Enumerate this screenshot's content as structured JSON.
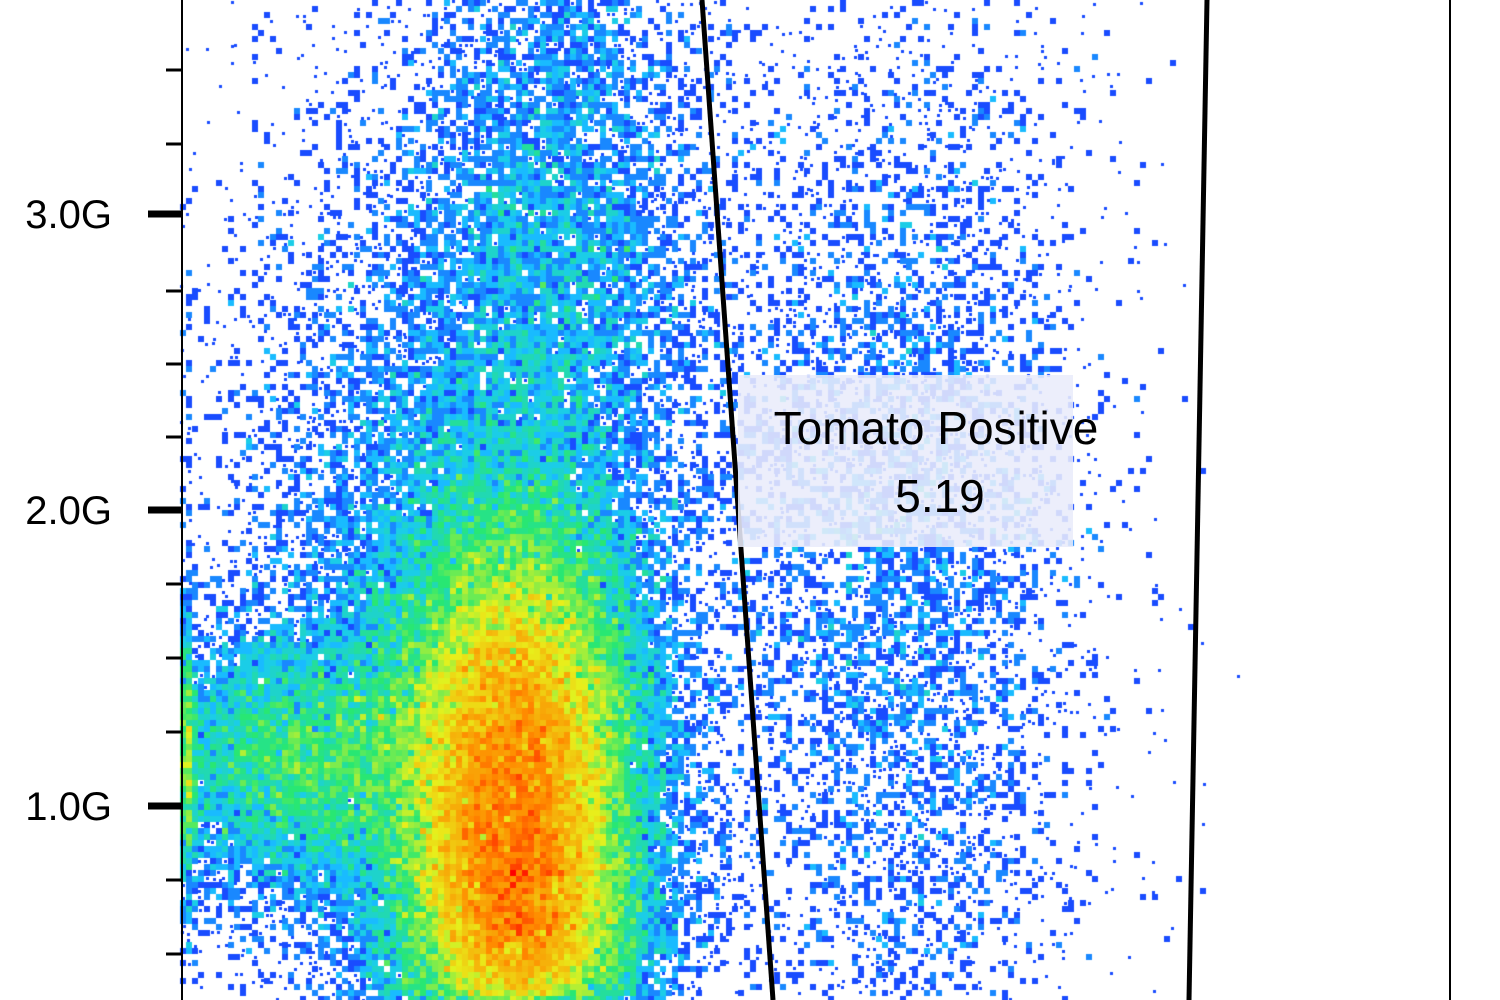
{
  "chart_data": {
    "type": "scatter",
    "subtype": "flow-cytometry-density",
    "y_axis": {
      "ticks": [
        {
          "value": 3000000000.0,
          "label": "3.0G"
        },
        {
          "value": 2000000000.0,
          "label": "2.0G"
        },
        {
          "value": 1000000000.0,
          "label": "1.0G"
        }
      ],
      "ylim": [
        350000000.0,
        3750000000.0
      ]
    },
    "grid": false,
    "colormap": [
      "#1a10ff",
      "#19c8ff",
      "#29e873",
      "#e8f21c",
      "#ff8c00",
      "#ff0000"
    ],
    "gate": {
      "name": "Tomato Positive",
      "percent": "5.19",
      "stroke": "#000000"
    }
  }
}
